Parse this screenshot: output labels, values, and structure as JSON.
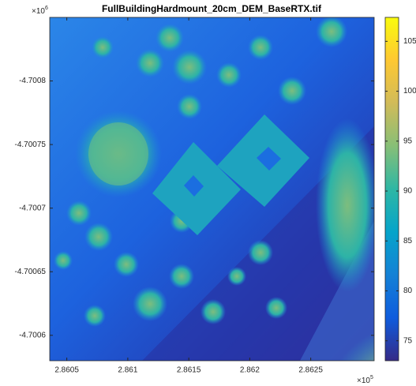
{
  "chart_data": {
    "type": "image",
    "title": "FullBuildingHardmount_20cm_DEM_BaseRTX.tif",
    "xlim": [
      2.86036,
      2.86302
    ],
    "xticks": [
      2.8605,
      2.861,
      2.8615,
      2.862,
      2.8625
    ],
    "x_multiplier": {
      "base": "×10",
      "exponent": "5"
    },
    "ylim": [
      -4.70085,
      -4.70058
    ],
    "y_reversed": true,
    "yticks": [
      -4.7008,
      -4.70075,
      -4.7007,
      -4.70065,
      -4.7006
    ],
    "y_multiplier": {
      "base": "×10",
      "exponent": "6"
    },
    "colorbar": {
      "clim": [
        73,
        107.4
      ],
      "ticks": [
        75,
        80,
        85,
        90,
        95,
        100,
        105
      ],
      "colormap": [
        "#352a87",
        "#0f5cdd",
        "#1481d6",
        "#06a4ca",
        "#2eb7a4",
        "#87bf77",
        "#d1bb59",
        "#fec832",
        "#f9fb0e"
      ]
    }
  }
}
